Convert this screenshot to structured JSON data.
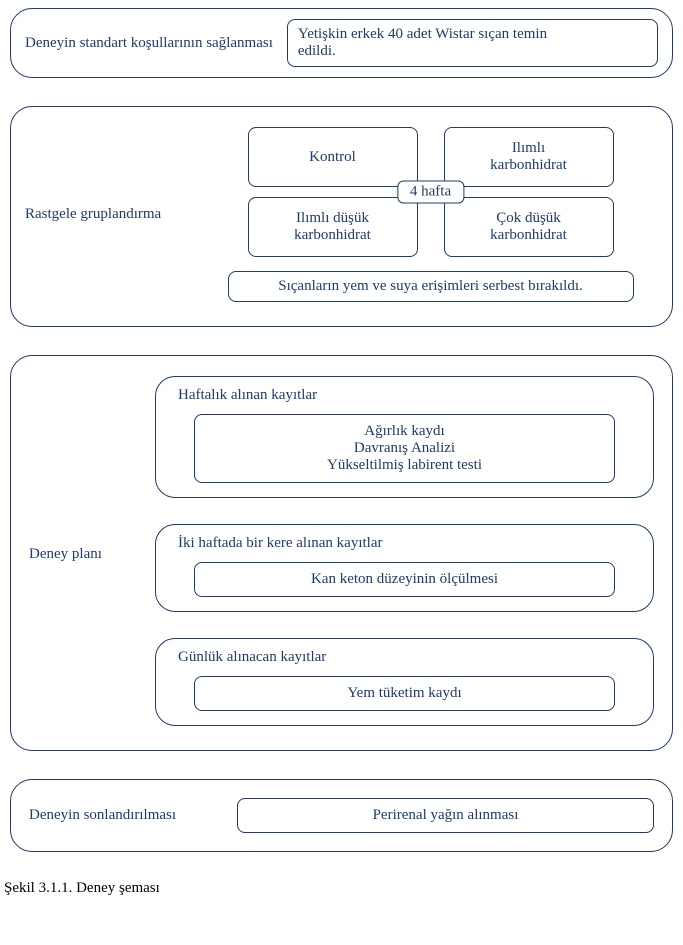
{
  "type": "flowchart",
  "colors": {
    "border": "#1f3a6e",
    "text": "#1f3a6e",
    "background": "#ffffff",
    "caption_text": "#000000"
  },
  "typography": {
    "font_family": "Times New Roman",
    "base_fontsize_pt": 11
  },
  "section1": {
    "label": "Deneyin standart koşullarının sağlanması",
    "supply_line1": "Yetişkin erkek 40 adet Wistar sıçan temin",
    "supply_line2": "edildi."
  },
  "section2": {
    "label": "Rastgele gruplandırma",
    "weeks": "4 hafta",
    "cells": {
      "c0": "Kontrol",
      "c1_line1": "Ilımlı",
      "c1_line2": "karbonhidrat",
      "c2_line1": "Ilımlı düşük",
      "c2_line2": "karbonhidrat",
      "c3_line1": "Çok düşük",
      "c3_line2": "karbonhidrat"
    },
    "footer": "Sıçanların yem ve suya erişimleri serbest bırakıldı."
  },
  "section3": {
    "label": "Deney planı",
    "groups": {
      "g0": {
        "title": "Haftalık alınan kayıtlar",
        "items": {
          "i0": "Ağırlık kaydı",
          "i1": "Davranış Analizi",
          "i2": "Yükseltilmiş labirent testi"
        }
      },
      "g1": {
        "title": "İki haftada bir kere alınan kayıtlar",
        "items": {
          "i0": "Kan keton düzeyinin ölçülmesi"
        }
      },
      "g2": {
        "title": "Günlük alınacan kayıtlar",
        "items": {
          "i0": "Yem tüketim kaydı"
        }
      }
    }
  },
  "section4": {
    "label": "Deneyin sonlandırılması",
    "box": "Perirenal yağın alınması"
  },
  "caption": "Şekil 3.1.1. Deney şeması"
}
